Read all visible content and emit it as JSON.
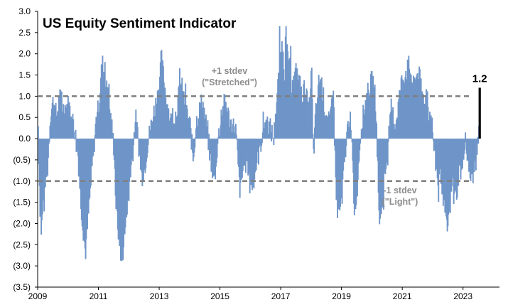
{
  "chart_data": {
    "type": "bar",
    "title": "US Equity Sentiment Indicator",
    "xlabel": "",
    "ylabel": "",
    "ylim": [
      -3.5,
      3.0
    ],
    "y_ticks": [
      3.0,
      2.5,
      2.0,
      1.5,
      1.0,
      0.5,
      0.0,
      -0.5,
      -1.0,
      -1.5,
      -2.0,
      -2.5,
      -3.0,
      -3.5
    ],
    "y_tick_labels": [
      "3.0",
      "2.5",
      "2.0",
      "1.5",
      "1.0",
      "0.5",
      "0.0",
      "(0.5)",
      "(1.0)",
      "(1.5)",
      "(2.0)",
      "(2.5)",
      "(3.0)",
      "(3.5)"
    ],
    "xlim": [
      2009.0,
      2024.2
    ],
    "x_tick_labels": [
      "2009",
      "2011",
      "2013",
      "2015",
      "2017",
      "2019",
      "2021",
      "2023"
    ],
    "x_tick_values": [
      2009,
      2011,
      2013,
      2015,
      2017,
      2019,
      2021,
      2023
    ],
    "bar_color": "#6f95c8",
    "reference_lines": [
      {
        "value": 1.0,
        "label_line1": "+1 stdev",
        "label_line2": "(\"Stretched\")",
        "color": "#7f7f7f"
      },
      {
        "value": -1.0,
        "label_line1": "-1 stdev",
        "label_line2": "(\"Light\")",
        "color": "#7f7f7f"
      }
    ],
    "latest": {
      "x": 2023.55,
      "value": 1.2,
      "label": "1.2",
      "color": "#000000"
    },
    "series_anchors": [
      [
        2009.0,
        0.3
      ],
      [
        2009.05,
        -1.5
      ],
      [
        2009.1,
        -2.2
      ],
      [
        2009.2,
        -1.0
      ],
      [
        2009.3,
        -0.8
      ],
      [
        2009.4,
        0.6
      ],
      [
        2009.5,
        0.9
      ],
      [
        2009.6,
        0.5
      ],
      [
        2009.7,
        1.0
      ],
      [
        2009.8,
        0.7
      ],
      [
        2010.0,
        0.8
      ],
      [
        2010.2,
        0.2
      ],
      [
        2010.3,
        -0.3
      ],
      [
        2010.4,
        -1.5
      ],
      [
        2010.5,
        -2.3
      ],
      [
        2010.55,
        -2.7
      ],
      [
        2010.65,
        -1.8
      ],
      [
        2010.75,
        -0.9
      ],
      [
        2010.9,
        0.4
      ],
      [
        2011.0,
        0.8
      ],
      [
        2011.1,
        1.8
      ],
      [
        2011.2,
        1.4
      ],
      [
        2011.3,
        0.9
      ],
      [
        2011.4,
        0.4
      ],
      [
        2011.5,
        -0.3
      ],
      [
        2011.55,
        -1.5
      ],
      [
        2011.65,
        -2.3
      ],
      [
        2011.75,
        -2.9
      ],
      [
        2011.85,
        -2.2
      ],
      [
        2011.95,
        -1.3
      ],
      [
        2012.1,
        -0.4
      ],
      [
        2012.2,
        0.5
      ],
      [
        2012.3,
        -0.1
      ],
      [
        2012.4,
        -0.9
      ],
      [
        2012.5,
        -0.7
      ],
      [
        2012.6,
        -0.1
      ],
      [
        2012.8,
        0.6
      ],
      [
        2012.95,
        1.1
      ],
      [
        2013.05,
        1.9
      ],
      [
        2013.2,
        1.0
      ],
      [
        2013.35,
        0.4
      ],
      [
        2013.5,
        0.5
      ],
      [
        2013.7,
        1.3
      ],
      [
        2013.85,
        0.7
      ],
      [
        2014.0,
        0.3
      ],
      [
        2014.1,
        -0.5
      ],
      [
        2014.2,
        0.4
      ],
      [
        2014.4,
        0.9
      ],
      [
        2014.55,
        0.2
      ],
      [
        2014.7,
        -0.6
      ],
      [
        2014.8,
        -1.0
      ],
      [
        2014.9,
        -0.1
      ],
      [
        2015.05,
        0.6
      ],
      [
        2015.15,
        0.9
      ],
      [
        2015.3,
        0.4
      ],
      [
        2015.5,
        0.2
      ],
      [
        2015.6,
        -0.9
      ],
      [
        2015.65,
        -1.3
      ],
      [
        2015.8,
        -0.3
      ],
      [
        2015.95,
        -0.8
      ],
      [
        2016.05,
        -1.1
      ],
      [
        2016.15,
        -0.7
      ],
      [
        2016.3,
        -0.2
      ],
      [
        2016.45,
        0.4
      ],
      [
        2016.6,
        0.3
      ],
      [
        2016.75,
        0.0
      ],
      [
        2016.85,
        0.9
      ],
      [
        2016.95,
        1.8
      ],
      [
        2017.05,
        2.3
      ],
      [
        2017.1,
        1.5
      ],
      [
        2017.2,
        2.0
      ],
      [
        2017.35,
        1.2
      ],
      [
        2017.5,
        1.6
      ],
      [
        2017.65,
        1.0
      ],
      [
        2017.8,
        1.2
      ],
      [
        2017.9,
        0.5
      ],
      [
        2018.0,
        1.6
      ],
      [
        2018.05,
        -0.5
      ],
      [
        2018.15,
        0.8
      ],
      [
        2018.3,
        1.4
      ],
      [
        2018.45,
        0.6
      ],
      [
        2018.6,
        0.3
      ],
      [
        2018.7,
        1.3
      ],
      [
        2018.8,
        -1.2
      ],
      [
        2018.9,
        -1.8
      ],
      [
        2019.0,
        -1.3
      ],
      [
        2019.1,
        -0.3
      ],
      [
        2019.25,
        0.6
      ],
      [
        2019.35,
        -0.6
      ],
      [
        2019.4,
        -1.7
      ],
      [
        2019.5,
        -1.1
      ],
      [
        2019.6,
        0.1
      ],
      [
        2019.75,
        0.8
      ],
      [
        2019.9,
        1.2
      ],
      [
        2020.0,
        1.4
      ],
      [
        2020.1,
        0.9
      ],
      [
        2020.17,
        -0.5
      ],
      [
        2020.2,
        -1.6
      ],
      [
        2020.25,
        -2.0
      ],
      [
        2020.35,
        -1.2
      ],
      [
        2020.45,
        -0.6
      ],
      [
        2020.55,
        0.2
      ],
      [
        2020.65,
        0.6
      ],
      [
        2020.75,
        0.3
      ],
      [
        2020.85,
        0.8
      ],
      [
        2020.95,
        1.3
      ],
      [
        2021.05,
        1.5
      ],
      [
        2021.2,
        1.7
      ],
      [
        2021.35,
        1.2
      ],
      [
        2021.5,
        1.6
      ],
      [
        2021.65,
        1.0
      ],
      [
        2021.8,
        0.8
      ],
      [
        2021.95,
        0.4
      ],
      [
        2022.05,
        -0.4
      ],
      [
        2022.15,
        -1.0
      ],
      [
        2022.25,
        -0.8
      ],
      [
        2022.35,
        -1.5
      ],
      [
        2022.45,
        -2.2
      ],
      [
        2022.55,
        -1.6
      ],
      [
        2022.65,
        -0.9
      ],
      [
        2022.75,
        -1.4
      ],
      [
        2022.85,
        -0.7
      ],
      [
        2022.95,
        -0.8
      ],
      [
        2023.05,
        0.1
      ],
      [
        2023.15,
        -0.6
      ],
      [
        2023.25,
        -1.0
      ],
      [
        2023.35,
        -0.7
      ],
      [
        2023.45,
        -0.3
      ],
      [
        2023.5,
        0.2
      ]
    ]
  }
}
